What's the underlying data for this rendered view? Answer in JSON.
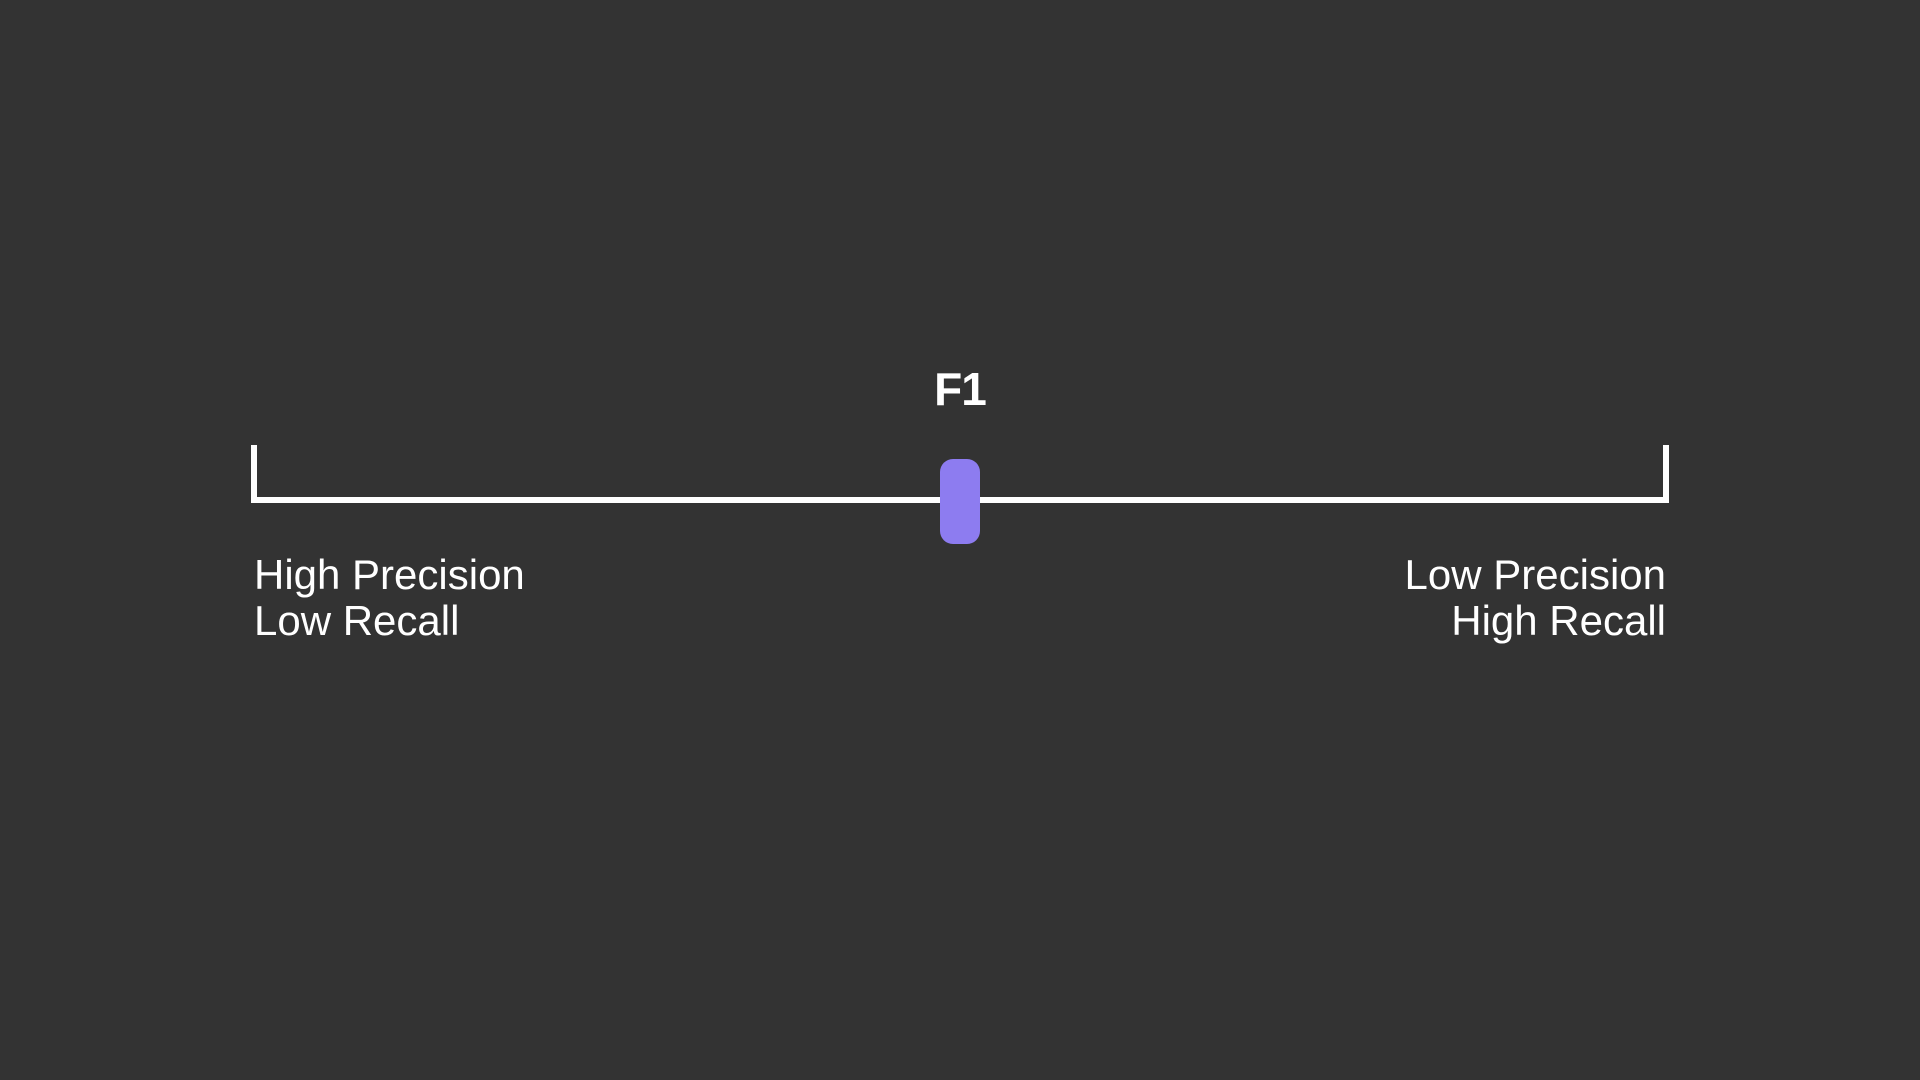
{
  "marker": {
    "label": "F1",
    "position": 0.5
  },
  "left_end": {
    "line1": "High Precision",
    "line2": "Low Recall"
  },
  "right_end": {
    "line1": "Low Precision",
    "line2": "High Recall"
  },
  "colors": {
    "background": "#333333",
    "line": "#ffffff",
    "handle": "#8d7cf0",
    "text": "#ffffff"
  }
}
